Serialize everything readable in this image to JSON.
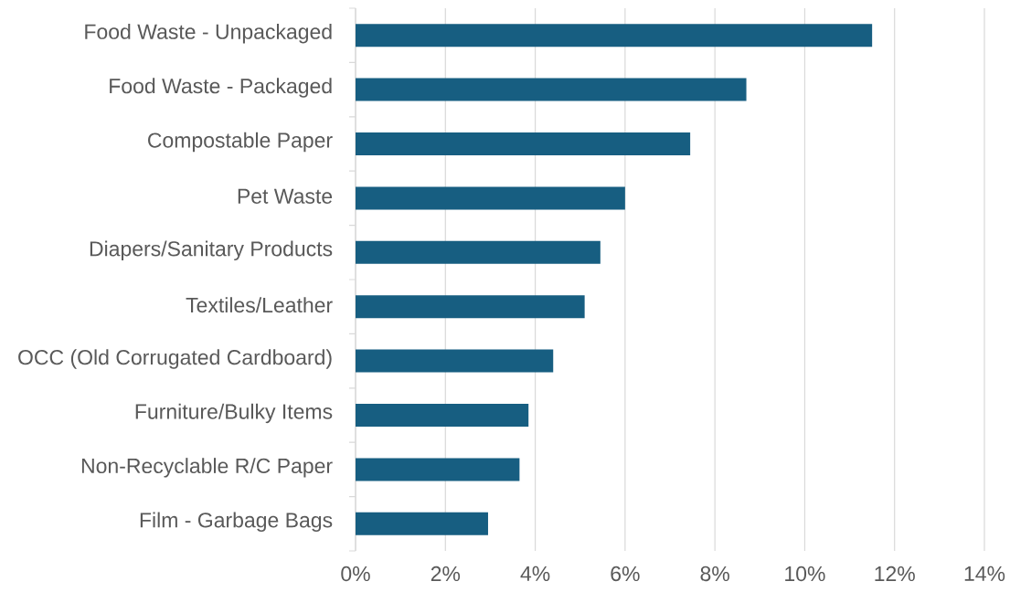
{
  "chart_data": {
    "type": "bar",
    "orientation": "horizontal",
    "categories": [
      "Food Waste - Unpackaged",
      "Food Waste - Packaged",
      "Compostable Paper",
      "Pet Waste",
      "Diapers/Sanitary Products",
      "Textiles/Leather",
      "OCC (Old Corrugated Cardboard)",
      "Furniture/Bulky Items",
      "Non-Recyclable R/C Paper",
      "Film - Garbage Bags"
    ],
    "values": [
      11.5,
      8.7,
      7.45,
      6.0,
      5.45,
      5.1,
      4.4,
      3.85,
      3.65,
      2.95
    ],
    "color": "#175e81",
    "xlim": [
      0,
      14
    ],
    "xticks": [
      {
        "value": 0,
        "label": "0%"
      },
      {
        "value": 2,
        "label": "2%"
      },
      {
        "value": 4,
        "label": "4%"
      },
      {
        "value": 6,
        "label": "6%"
      },
      {
        "value": 8,
        "label": "8%"
      },
      {
        "value": 10,
        "label": "10%"
      },
      {
        "value": 12,
        "label": "12%"
      },
      {
        "value": 14,
        "label": "14%"
      }
    ],
    "grid": "x"
  }
}
